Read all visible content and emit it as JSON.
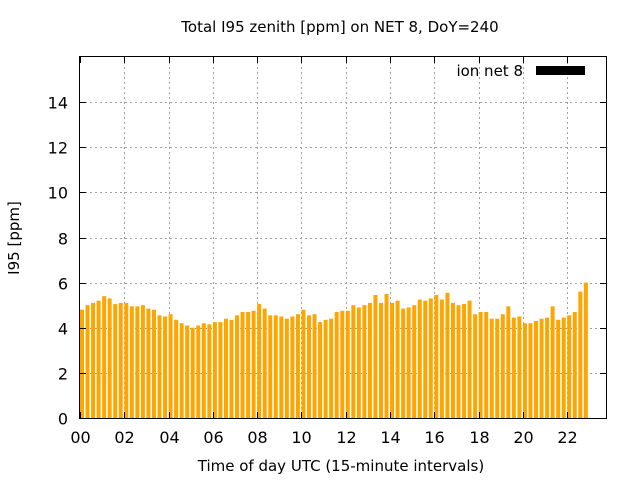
{
  "chart_data": {
    "type": "bar",
    "title": "Total I95 zenith [ppm] on NET 8, DoY=240",
    "xlabel": "Time of day UTC (15-minute intervals)",
    "ylabel": "I95 [ppm]",
    "ylim": [
      0,
      16
    ],
    "xlim": [
      0,
      23.75
    ],
    "y_ticks": [
      0,
      2,
      4,
      6,
      8,
      10,
      12,
      14
    ],
    "y_tick_labels": [
      "0",
      "2",
      "4",
      "6",
      "8",
      "10",
      "12",
      "14"
    ],
    "x_ticks": [
      0,
      2,
      4,
      6,
      8,
      10,
      12,
      14,
      16,
      18,
      20,
      22
    ],
    "x_tick_labels": [
      "00",
      "02",
      "04",
      "06",
      "08",
      "10",
      "12",
      "14",
      "16",
      "18",
      "20",
      "22"
    ],
    "grid": true,
    "legend_position": "top-right",
    "series": [
      {
        "name": "ion net 8",
        "color": "#ffa500",
        "legend_color": "#000000",
        "values": [
          4.8,
          5.0,
          5.1,
          5.2,
          5.4,
          5.3,
          5.05,
          5.1,
          5.1,
          4.95,
          4.95,
          5.0,
          4.85,
          4.8,
          4.55,
          4.5,
          4.6,
          4.35,
          4.2,
          4.1,
          4.0,
          4.1,
          4.2,
          4.15,
          4.25,
          4.25,
          4.4,
          4.35,
          4.55,
          4.7,
          4.7,
          4.75,
          5.05,
          4.85,
          4.55,
          4.55,
          4.5,
          4.4,
          4.5,
          4.6,
          4.8,
          4.55,
          4.6,
          4.25,
          4.35,
          4.4,
          4.7,
          4.75,
          4.75,
          5.0,
          4.9,
          5.0,
          5.1,
          5.45,
          5.1,
          5.5,
          5.1,
          5.2,
          4.85,
          4.9,
          5.0,
          5.25,
          5.2,
          5.3,
          5.45,
          5.25,
          5.55,
          5.1,
          5.0,
          5.05,
          5.2,
          4.6,
          4.7,
          4.7,
          4.4,
          4.4,
          4.6,
          4.95,
          4.45,
          4.5,
          4.2,
          4.2,
          4.3,
          4.4,
          4.45,
          4.95,
          4.35,
          4.45,
          4.55,
          4.7,
          5.6,
          6.0
        ]
      }
    ]
  }
}
